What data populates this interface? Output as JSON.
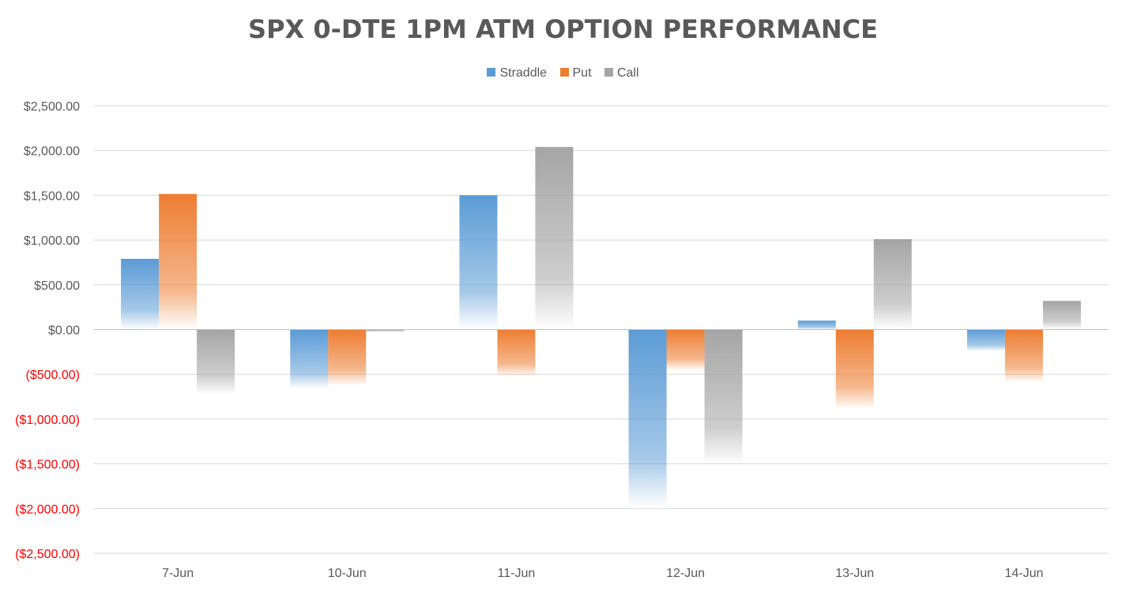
{
  "chart_data": {
    "type": "bar",
    "title": "SPX 0-DTE 1PM ATM OPTION PERFORMANCE",
    "categories": [
      "7-Jun",
      "10-Jun",
      "11-Jun",
      "12-Jun",
      "13-Jun",
      "14-Jun"
    ],
    "series": [
      {
        "name": "Straddle",
        "color": "#5B9BD5",
        "values": [
          790,
          -660,
          1500,
          -1990,
          100,
          -240
        ]
      },
      {
        "name": "Put",
        "color": "#ED7D31",
        "values": [
          1515,
          -625,
          -530,
          -460,
          -890,
          -590
        ]
      },
      {
        "name": "Call",
        "color": "#A5A5A5",
        "values": [
          -720,
          -25,
          2040,
          -1510,
          1010,
          320
        ]
      }
    ],
    "ylim": [
      -2500,
      2500
    ],
    "yticks": [
      {
        "value": 2500,
        "label": "$2,500.00",
        "color": "#595959"
      },
      {
        "value": 2000,
        "label": "$2,000.00",
        "color": "#595959"
      },
      {
        "value": 1500,
        "label": "$1,500.00",
        "color": "#595959"
      },
      {
        "value": 1000,
        "label": "$1,000.00",
        "color": "#595959"
      },
      {
        "value": 500,
        "label": "$500.00",
        "color": "#595959"
      },
      {
        "value": 0,
        "label": "$0.00",
        "color": "#595959"
      },
      {
        "value": -500,
        "label": "($500.00)",
        "color": "#FF0000"
      },
      {
        "value": -1000,
        "label": "($1,000.00)",
        "color": "#FF0000"
      },
      {
        "value": -1500,
        "label": "($1,500.00)",
        "color": "#FF0000"
      },
      {
        "value": -2000,
        "label": "($2,000.00)",
        "color": "#FF0000"
      },
      {
        "value": -2500,
        "label": "($2,500.00)",
        "color": "#FF0000"
      }
    ],
    "xlabel": "",
    "ylabel": "",
    "grid": true,
    "legend": "top-center",
    "fill_style": "gradient fading toward zero"
  }
}
